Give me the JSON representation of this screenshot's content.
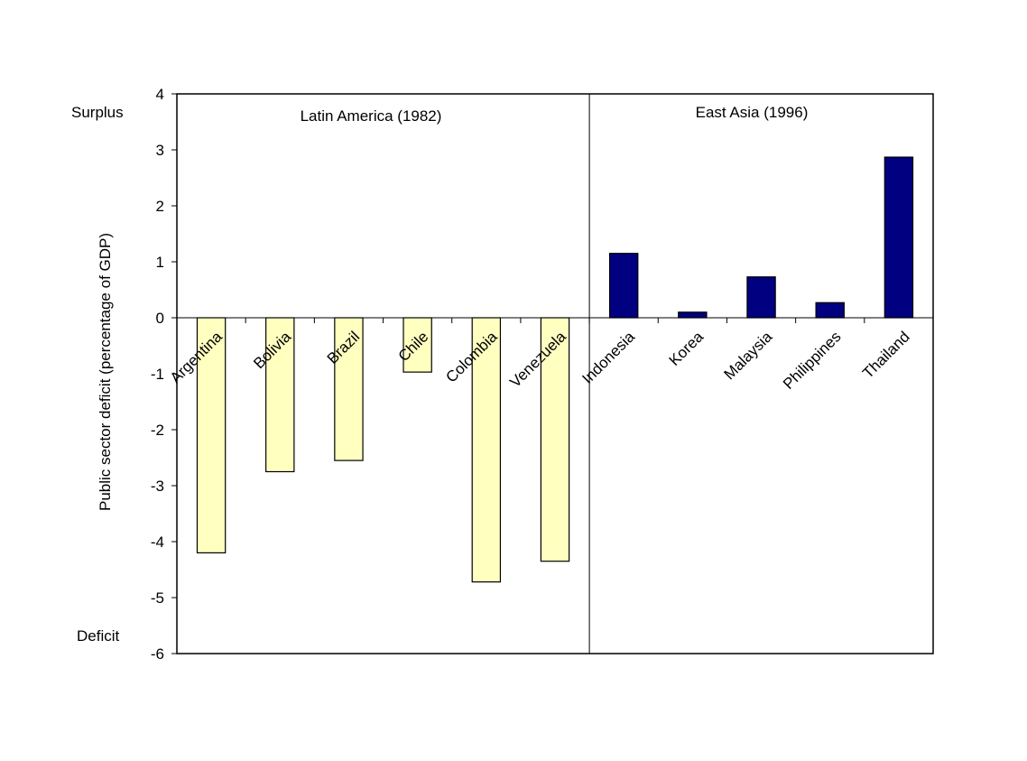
{
  "chart_data": {
    "type": "bar",
    "title": "",
    "xlabel": "",
    "ylabel": "Public sector deficit (percentage of GDP)",
    "ylim": [
      -6,
      4
    ],
    "yticks": [
      4,
      3,
      2,
      1,
      0,
      -1,
      -2,
      -3,
      -4,
      -5,
      -6
    ],
    "grid": false,
    "legend": "none",
    "annotations": {
      "top": "Surplus",
      "bottom": "Deficit"
    },
    "groups": [
      {
        "label": "Latin America (1982)",
        "color": "#FFFFC0",
        "categories": [
          "Argentina",
          "Bolivia",
          "Brazil",
          "Chile",
          "Colombia",
          "Venezuela"
        ],
        "values": [
          -4.2,
          -2.75,
          -2.55,
          -0.97,
          -4.72,
          -4.35
        ]
      },
      {
        "label": "East Asia (1996)",
        "color": "#000080",
        "categories": [
          "Indonesia",
          "Korea",
          "Malaysia",
          "Philippines",
          "Thailand"
        ],
        "values": [
          1.15,
          0.1,
          0.73,
          0.27,
          2.87
        ]
      }
    ]
  }
}
